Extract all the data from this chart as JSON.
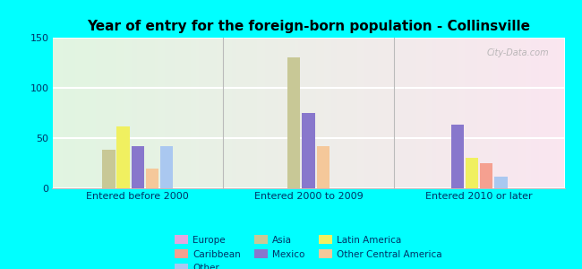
{
  "title": "Year of entry for the foreign-born population - Collinsville",
  "groups": [
    "Entered before 2000",
    "Entered 2000 to 2009",
    "Entered 2010 or later"
  ],
  "group_bar_data": [
    [
      {
        "label": "Asia",
        "color": "#c8c896",
        "value": 38
      },
      {
        "label": "Latin America",
        "color": "#f0f060",
        "value": 62
      },
      {
        "label": "Mexico",
        "color": "#8877cc",
        "value": 42
      },
      {
        "label": "Other Central America",
        "color": "#f5c89a",
        "value": 20
      },
      {
        "label": "Other",
        "color": "#aac8f0",
        "value": 42
      }
    ],
    [
      {
        "label": "Asia",
        "color": "#c8c896",
        "value": 130
      },
      {
        "label": "Mexico",
        "color": "#8877cc",
        "value": 75
      },
      {
        "label": "Other Central America",
        "color": "#f5c89a",
        "value": 42
      }
    ],
    [
      {
        "label": "Mexico",
        "color": "#8877cc",
        "value": 63
      },
      {
        "label": "Latin America",
        "color": "#f0f060",
        "value": 30
      },
      {
        "label": "Caribbean",
        "color": "#f5a090",
        "value": 25
      },
      {
        "label": "Other",
        "color": "#aac8f0",
        "value": 12
      }
    ]
  ],
  "legend_items": [
    {
      "label": "Europe",
      "color": "#e0a8e0"
    },
    {
      "label": "Caribbean",
      "color": "#f5a090"
    },
    {
      "label": "Other",
      "color": "#aac8f0"
    },
    {
      "label": "Asia",
      "color": "#c8c896"
    },
    {
      "label": "Mexico",
      "color": "#8877cc"
    },
    {
      "label": "Latin America",
      "color": "#f0f060"
    },
    {
      "label": "Other Central America",
      "color": "#f5c89a"
    }
  ],
  "ylim": [
    0,
    150
  ],
  "yticks": [
    0,
    50,
    100,
    150
  ],
  "background_color": "#00ffff",
  "watermark": "City-Data.com",
  "title_fontsize": 11,
  "tick_fontsize": 8,
  "legend_fontsize": 7.5
}
